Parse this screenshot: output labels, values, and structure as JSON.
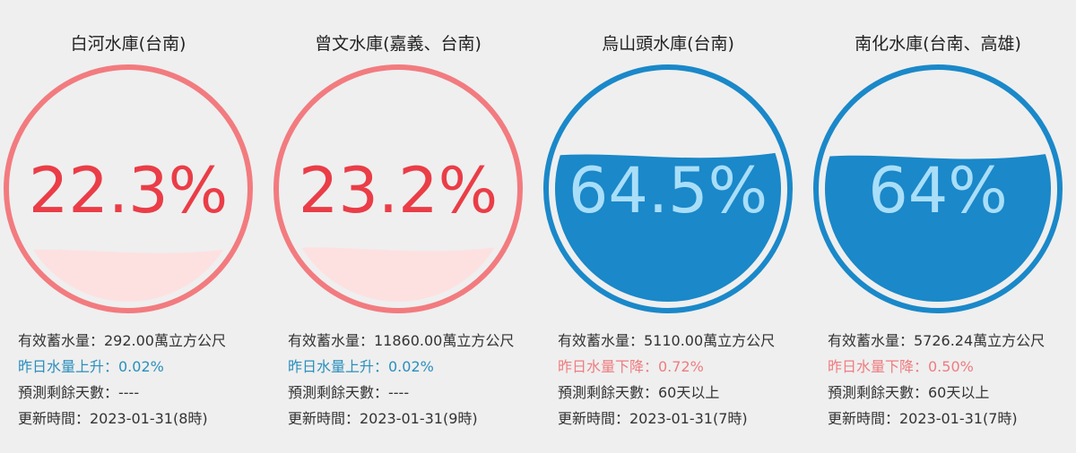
{
  "reservoirs": [
    {
      "name": "白河水庫(台南)",
      "percent": 22.3,
      "percent_label": "22.3%",
      "storage": "有效蓄水量：292.00萬立方公尺",
      "change": "昨日水量上升：0.02%",
      "change_color": "#2a8fbd",
      "days": "預測剩餘天數：----",
      "updated": "更新時間：2023-01-31(8時)",
      "ring_color": "#f27b7f",
      "water_color": "#fde1e1",
      "text_color": "#ea3d47"
    },
    {
      "name": "曾文水庫(嘉義、台南)",
      "percent": 23.2,
      "percent_label": "23.2%",
      "storage": "有效蓄水量：11860.00萬立方公尺",
      "change": "昨日水量上升：0.02%",
      "change_color": "#2a8fbd",
      "days": "預測剩餘天數：----",
      "updated": "更新時間：2023-01-31(9時)",
      "ring_color": "#f27b7f",
      "water_color": "#fde1e1",
      "text_color": "#ea3d47"
    },
    {
      "name": "烏山頭水庫(台南)",
      "percent": 64.5,
      "percent_label": "64.5%",
      "storage": "有效蓄水量：5110.00萬立方公尺",
      "change": "昨日水量下降：0.72%",
      "change_color": "#ef7c80",
      "days": "預測剩餘天數：60天以上",
      "updated": "更新時間：2023-01-31(7時)",
      "ring_color": "#1a88c9",
      "water_color": "#1a88c9",
      "text_color": "#a9def8"
    },
    {
      "name": "南化水庫(台南、高雄)",
      "percent": 64,
      "percent_label": "64%",
      "storage": "有效蓄水量：5726.24萬立方公尺",
      "change": "昨日水量下降：0.50%",
      "change_color": "#ef7c80",
      "days": "預測剩餘天數：60天以上",
      "updated": "更新時間：2023-01-31(7時)",
      "ring_color": "#1a88c9",
      "water_color": "#1a88c9",
      "text_color": "#a9def8"
    }
  ]
}
